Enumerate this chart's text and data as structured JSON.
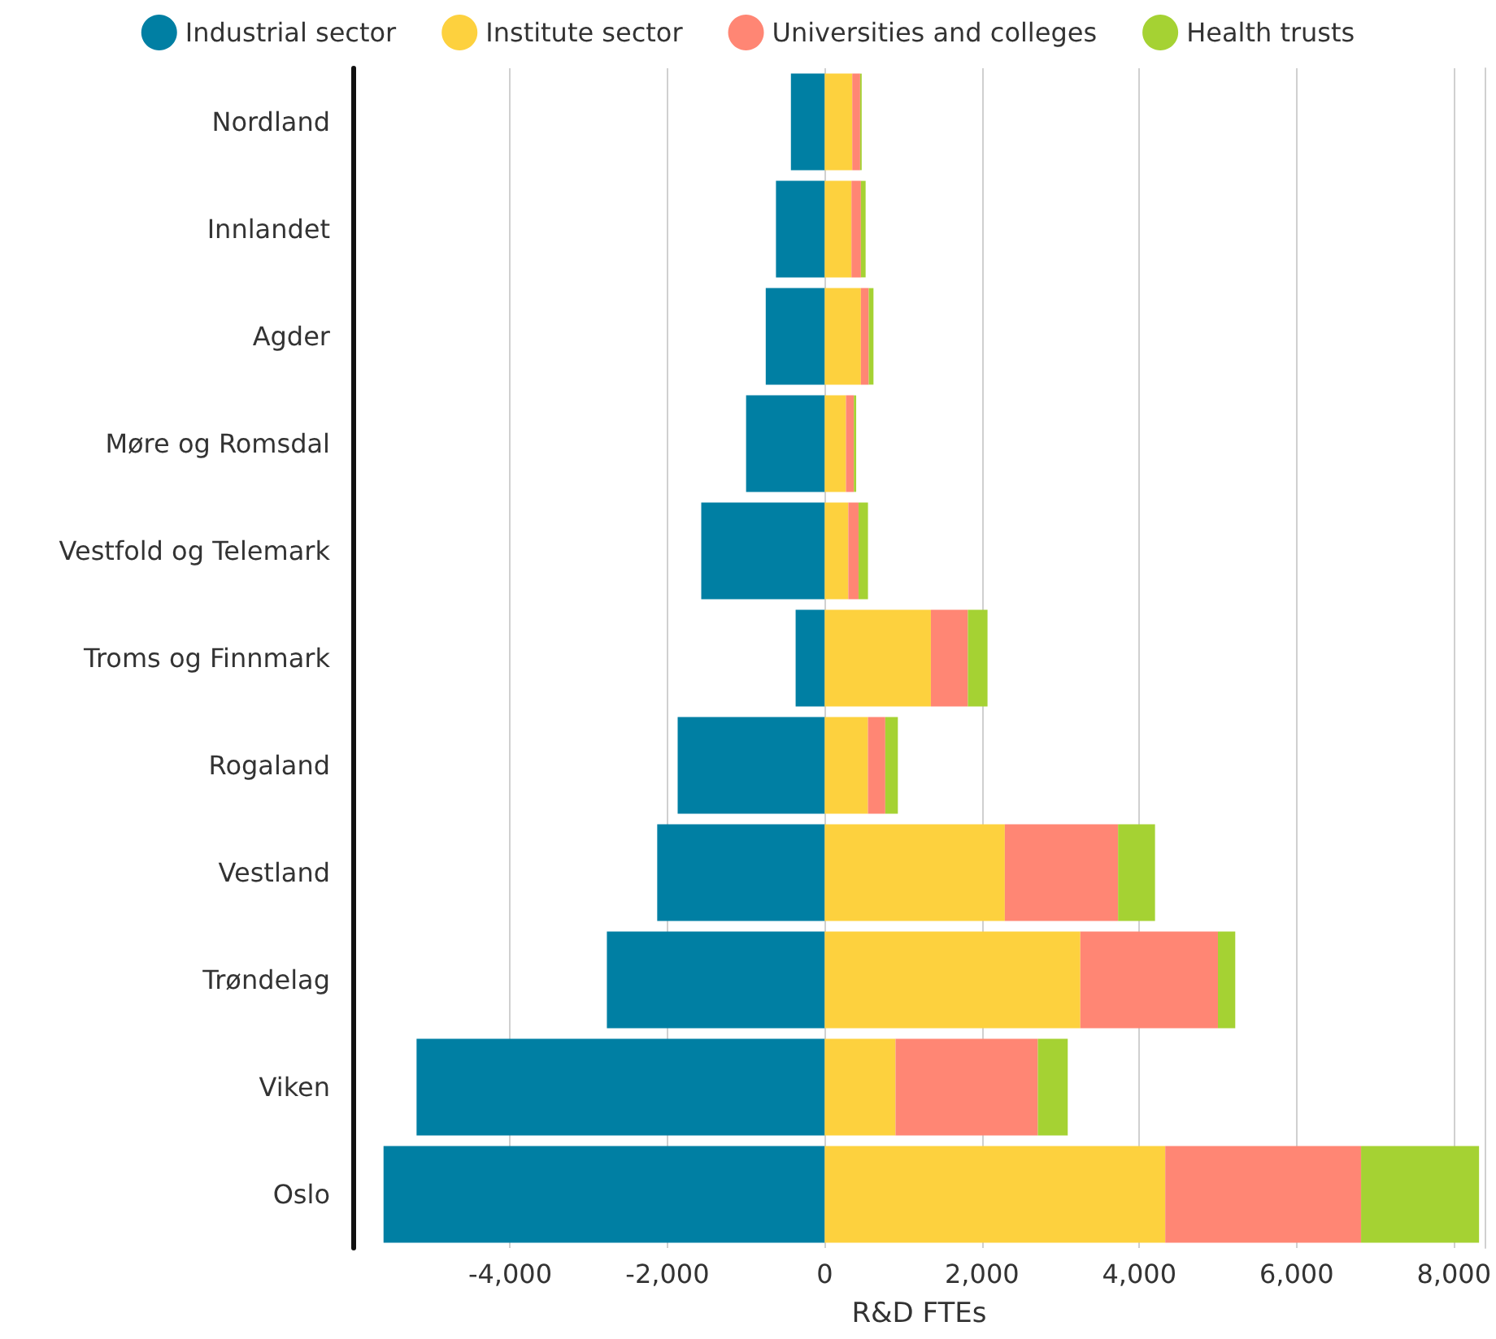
{
  "chart_data": {
    "type": "bar",
    "orientation": "horizontal",
    "stacked": true,
    "xlabel": "R&D FTEs",
    "categories": [
      "Nordland",
      "Innlandet",
      "Agder",
      "Møre og Romsdal",
      "Vestfold og Telemark",
      "Troms og Finnmark",
      "Rogaland",
      "Vestland",
      "Trøndelag",
      "Viken",
      "Oslo"
    ],
    "series": [
      {
        "name": "Industrial sector",
        "color": "#007fa3",
        "values": [
          -430,
          -620,
          -750,
          -1000,
          -1570,
          -370,
          -1870,
          -2130,
          -2770,
          -5190,
          -5610
        ]
      },
      {
        "name": "Institute sector",
        "color": "#fdd13e",
        "values": [
          350,
          340,
          460,
          270,
          300,
          1350,
          550,
          2290,
          3250,
          900,
          4330
        ]
      },
      {
        "name": "Universities and colleges",
        "color": "#ff8674",
        "values": [
          100,
          120,
          100,
          100,
          130,
          470,
          220,
          1440,
          1750,
          1810,
          2490
        ]
      },
      {
        "name": "Health trusts",
        "color": "#a5d233",
        "values": [
          20,
          60,
          60,
          30,
          120,
          250,
          160,
          470,
          220,
          380,
          1500
        ]
      }
    ],
    "xlim": [
      -6000,
      8400
    ],
    "xticks": [
      {
        "value": -4000,
        "label": "-4,000"
      },
      {
        "value": -2000,
        "label": "-2,000"
      },
      0,
      {
        "value": 2000,
        "label": "2,000"
      },
      {
        "value": 4000,
        "label": "4,000"
      },
      {
        "value": 6000,
        "label": "6,000"
      },
      {
        "value": 8000,
        "label": "8,000"
      }
    ],
    "grid": "x",
    "legend": "top"
  }
}
